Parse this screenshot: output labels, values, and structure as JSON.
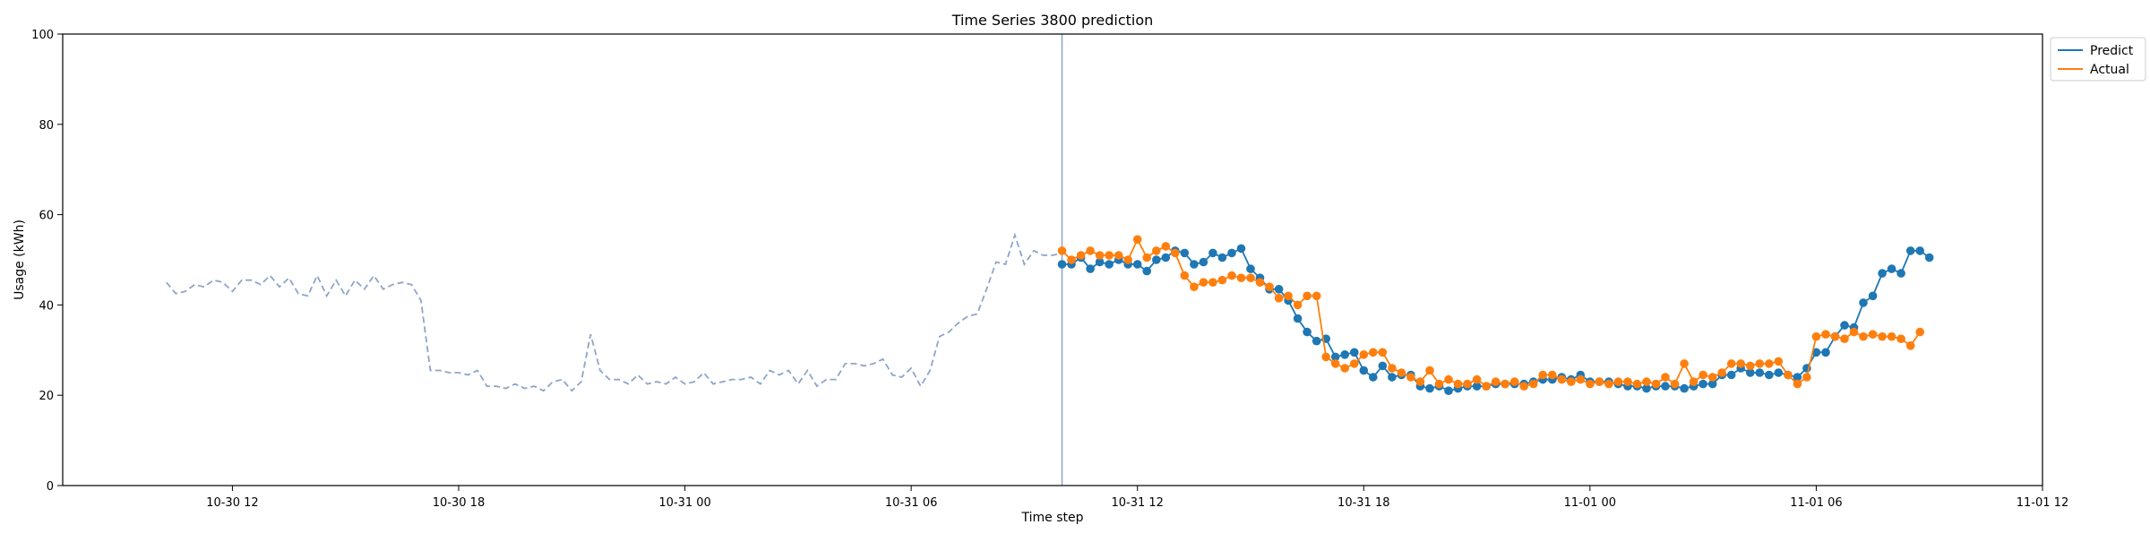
{
  "chart_data": {
    "type": "line",
    "title": "Time Series 3800 prediction",
    "xlabel": "Time step",
    "ylabel": "Usage (kWh)",
    "x_axis_kind": "datetime",
    "x_step_minutes": 15,
    "xlim": [
      "2023-10-30 07:30",
      "2023-11-01 12:00"
    ],
    "ylim": [
      0,
      100
    ],
    "x_ticks": [
      "10-30 12",
      "10-30 18",
      "10-31 00",
      "10-31 06",
      "10-31 12",
      "10-31 18",
      "11-01 00",
      "11-01 06",
      "11-01 12"
    ],
    "x_tick_times": [
      "2023-10-30 12:00",
      "2023-10-30 18:00",
      "2023-10-31 00:00",
      "2023-10-31 06:00",
      "2023-10-31 12:00",
      "2023-10-31 18:00",
      "2023-11-01 00:00",
      "2023-11-01 06:00",
      "2023-11-01 12:00"
    ],
    "y_ticks": [
      0,
      20,
      40,
      60,
      80,
      100
    ],
    "grid": false,
    "legend": {
      "position": "top-right",
      "entries": [
        "Predict",
        "Actual"
      ]
    },
    "vline": {
      "x": "2023-10-31 10:00",
      "color": "#8ea5c8"
    },
    "series": [
      {
        "name": "history",
        "style": "dashed",
        "color": "#8ea5c8",
        "x_start": "2023-10-30 10:15",
        "values": [
          45,
          42.5,
          43,
          44.5,
          44,
          45.5,
          45,
          43,
          45.5,
          45.5,
          44.5,
          46.5,
          44,
          46,
          42.5,
          42,
          46.5,
          42,
          45.5,
          42,
          45.5,
          43.5,
          46.5,
          43.5,
          44.5,
          45,
          44.5,
          41,
          25.5,
          25.5,
          25,
          25,
          24.5,
          25.5,
          22,
          22,
          21.5,
          22.5,
          21.5,
          22,
          21,
          23,
          23.5,
          21,
          23,
          33.5,
          25.5,
          23.5,
          23.5,
          22.5,
          24.5,
          22.5,
          23,
          22.5,
          24,
          22.5,
          23,
          25,
          22.5,
          23,
          23.5,
          23.5,
          24,
          22.5,
          25.5,
          24.5,
          25.5,
          22.5,
          25.5,
          22,
          23.5,
          23.5,
          27,
          27,
          26.5,
          27,
          28,
          24.5,
          24,
          26,
          22,
          25.5,
          33,
          34,
          36,
          37.5,
          38,
          43.5,
          49.5,
          49,
          55.5,
          49,
          52,
          51,
          51,
          51.5
        ]
      },
      {
        "name": "Predict",
        "style": "solid-marker",
        "color": "#1f77b4",
        "x_start": "2023-10-31 10:00",
        "values": [
          49,
          49,
          50.5,
          48,
          49.5,
          49,
          50,
          49,
          49,
          47.5,
          50,
          50.5,
          52,
          51.5,
          49,
          49.5,
          51.5,
          50.5,
          51.5,
          52.5,
          48,
          46,
          43.5,
          43.5,
          41,
          37,
          34,
          32,
          32.5,
          28.5,
          29,
          29.5,
          25.5,
          24,
          26.5,
          24,
          24.5,
          24.5,
          22,
          21.5,
          22,
          21,
          21.5,
          22,
          22,
          22,
          22.5,
          22.5,
          22.5,
          22.5,
          23,
          23.5,
          23.5,
          24,
          23.5,
          24.5,
          23,
          23,
          23,
          22.5,
          22,
          22,
          21.5,
          22,
          22,
          22,
          21.5,
          22,
          22.5,
          22.5,
          24.5,
          24.5,
          26,
          25,
          25,
          24.5,
          25,
          24.5,
          24,
          26,
          29.5,
          29.5,
          33,
          35.5,
          35,
          40.5,
          42,
          47,
          48,
          47,
          52,
          52,
          50.5
        ]
      },
      {
        "name": "Actual",
        "style": "solid-marker",
        "color": "#ff7f0e",
        "x_start": "2023-10-31 10:00",
        "values": [
          52,
          50,
          51,
          52,
          51,
          51,
          51,
          50,
          54.5,
          50.5,
          52,
          53,
          51.5,
          46.5,
          44,
          45,
          45,
          45.5,
          46.5,
          46,
          46,
          45,
          44,
          41.5,
          42,
          40,
          42,
          42,
          28.5,
          27,
          26,
          27,
          29,
          29.5,
          29.5,
          26,
          25,
          24,
          23,
          25.5,
          22.5,
          23.5,
          22.5,
          22.5,
          23.5,
          22,
          23,
          22.5,
          23,
          22,
          22.5,
          24.5,
          24.5,
          23.5,
          23,
          23.5,
          22.5,
          23,
          22.5,
          23,
          23,
          22.5,
          23,
          22.5,
          24,
          22.5,
          27,
          23,
          24.5,
          24,
          25,
          27,
          27,
          26.5,
          27,
          27,
          27.5,
          24.5,
          22.5,
          24,
          33,
          33.5,
          33,
          32.5,
          34,
          33,
          33.5,
          33,
          33,
          32.5,
          31,
          34
        ]
      }
    ]
  }
}
